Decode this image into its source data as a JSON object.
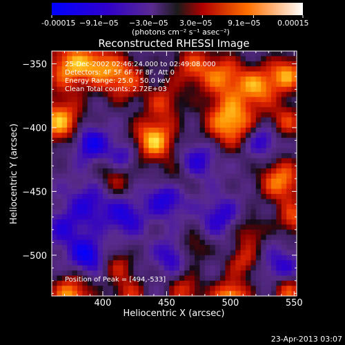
{
  "colorbar": {
    "ticks": [
      "-0.00015",
      "−9.1e−05",
      "−3.0e−05",
      "3.0e−05",
      "9.1e−05",
      "0.00015"
    ],
    "tick_values": [
      -0.00015,
      -9.1e-05,
      -3e-05,
      3e-05,
      9.1e-05,
      0.00015
    ],
    "range": [
      -0.00015,
      0.00015
    ],
    "unit_label": "(photons cm⁻² s⁻¹ asec⁻²)"
  },
  "footer_date": "23-Apr-2013 03:07",
  "chart_data": {
    "type": "heatmap",
    "title": "Reconstructed RHESSI Image",
    "xlabel": "Heliocentric X (arcsec)",
    "ylabel": "Heliocentric Y (arcsec)",
    "xlim": [
      360,
      552
    ],
    "ylim": [
      -532,
      -340
    ],
    "x_ticks": [
      400,
      450,
      500,
      550
    ],
    "y_ticks": [
      -350,
      -400,
      -450,
      -500
    ],
    "annotations": [
      "25-Dec-2002 02:46:24.000 to 02:49:08.000",
      "Detectors: 4F 5F 6F 7F 8F, Att 0",
      "Energy Range: 25.0 - 50.0 keV",
      "Clean     Total counts: 2.72E+03"
    ],
    "peak_label": "Position of Peak = [494,-533]",
    "blobs": [
      {
        "x": 375,
        "y": -352,
        "v": 0.9,
        "s": 14
      },
      {
        "x": 398,
        "y": -350,
        "v": 0.55,
        "s": 10
      },
      {
        "x": 416,
        "y": -362,
        "v": 0.75,
        "s": 12
      },
      {
        "x": 366,
        "y": -395,
        "v": 0.95,
        "s": 12
      },
      {
        "x": 440,
        "y": -410,
        "v": 1.0,
        "s": 12
      },
      {
        "x": 448,
        "y": -380,
        "v": 0.55,
        "s": 10
      },
      {
        "x": 470,
        "y": -352,
        "v": 0.6,
        "s": 12
      },
      {
        "x": 495,
        "y": -360,
        "v": 0.7,
        "s": 12
      },
      {
        "x": 500,
        "y": -395,
        "v": 1.0,
        "s": 14
      },
      {
        "x": 522,
        "y": -368,
        "v": 0.8,
        "s": 11
      },
      {
        "x": 545,
        "y": -358,
        "v": 0.85,
        "s": 10
      },
      {
        "x": 544,
        "y": -395,
        "v": 0.6,
        "s": 10
      },
      {
        "x": 410,
        "y": -440,
        "v": 0.45,
        "s": 10
      },
      {
        "x": 456,
        "y": -442,
        "v": 0.35,
        "s": 9
      },
      {
        "x": 540,
        "y": -442,
        "v": 0.85,
        "s": 12
      },
      {
        "x": 550,
        "y": -472,
        "v": 0.65,
        "s": 9
      },
      {
        "x": 515,
        "y": -482,
        "v": 0.45,
        "s": 9
      },
      {
        "x": 470,
        "y": -495,
        "v": 0.45,
        "s": 9
      },
      {
        "x": 510,
        "y": -505,
        "v": 0.55,
        "s": 9
      },
      {
        "x": 412,
        "y": -508,
        "v": 0.45,
        "s": 9
      },
      {
        "x": 375,
        "y": -532,
        "v": 0.9,
        "s": 11
      },
      {
        "x": 420,
        "y": -530,
        "v": 0.55,
        "s": 9
      },
      {
        "x": 465,
        "y": -528,
        "v": 0.6,
        "s": 9
      },
      {
        "x": 500,
        "y": -534,
        "v": 1.0,
        "s": 10
      },
      {
        "x": 545,
        "y": -528,
        "v": 0.7,
        "s": 9
      },
      {
        "x": 390,
        "y": -412,
        "v": -0.65,
        "s": 9
      },
      {
        "x": 416,
        "y": -422,
        "v": -0.45,
        "s": 9
      },
      {
        "x": 450,
        "y": -455,
        "v": -0.6,
        "s": 10
      },
      {
        "x": 418,
        "y": -470,
        "v": -0.5,
        "s": 10
      },
      {
        "x": 390,
        "y": -460,
        "v": -0.45,
        "s": 12
      },
      {
        "x": 525,
        "y": -410,
        "v": -0.55,
        "s": 9
      },
      {
        "x": 475,
        "y": -425,
        "v": -0.45,
        "s": 10
      },
      {
        "x": 388,
        "y": -500,
        "v": -0.7,
        "s": 9
      },
      {
        "x": 455,
        "y": -500,
        "v": -0.5,
        "s": 9
      },
      {
        "x": 492,
        "y": -470,
        "v": -0.45,
        "s": 10
      },
      {
        "x": 540,
        "y": -510,
        "v": -0.45,
        "s": 10
      },
      {
        "x": 370,
        "y": -480,
        "v": -0.4,
        "s": 10
      }
    ]
  }
}
